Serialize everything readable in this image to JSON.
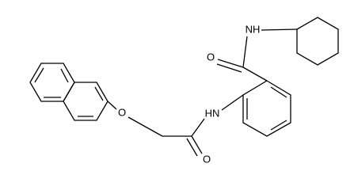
{
  "atoms": [
    {
      "label": "NH"
    },
    {
      "label": "O"
    },
    {
      "label": "HN"
    },
    {
      "label": "O"
    },
    {
      "label": "O"
    }
  ]
}
